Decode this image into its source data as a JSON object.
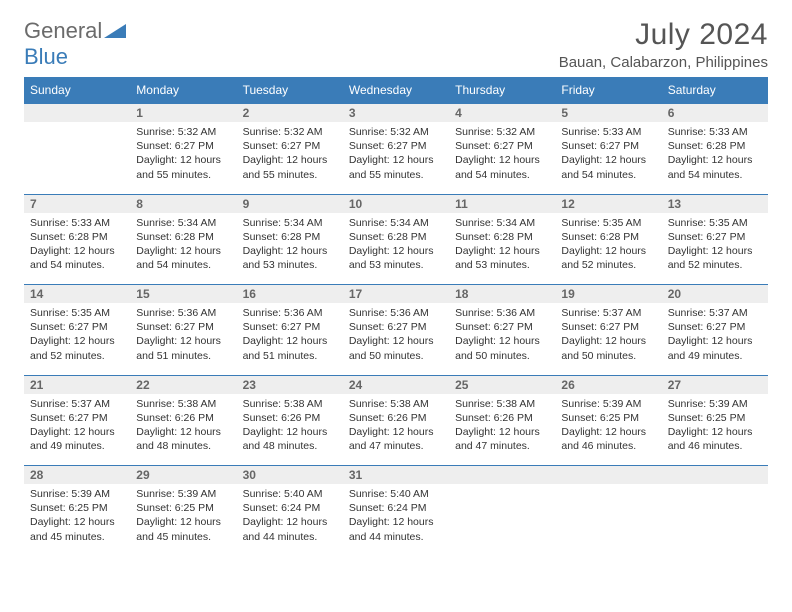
{
  "logo": {
    "text1": "General",
    "text2": "Blue"
  },
  "title": "July 2024",
  "location": "Bauan, Calabarzon, Philippines",
  "headers": [
    "Sunday",
    "Monday",
    "Tuesday",
    "Wednesday",
    "Thursday",
    "Friday",
    "Saturday"
  ],
  "colors": {
    "header_bg": "#3a7cb8",
    "header_text": "#ffffff",
    "daynum_bg": "#eeeeee",
    "border": "#3a7cb8",
    "background": "#ffffff"
  },
  "weeks": [
    {
      "nums": [
        "",
        "1",
        "2",
        "3",
        "4",
        "5",
        "6"
      ],
      "cells": [
        {},
        {
          "sr": "Sunrise: 5:32 AM",
          "ss": "Sunset: 6:27 PM",
          "d1": "Daylight: 12 hours",
          "d2": "and 55 minutes."
        },
        {
          "sr": "Sunrise: 5:32 AM",
          "ss": "Sunset: 6:27 PM",
          "d1": "Daylight: 12 hours",
          "d2": "and 55 minutes."
        },
        {
          "sr": "Sunrise: 5:32 AM",
          "ss": "Sunset: 6:27 PM",
          "d1": "Daylight: 12 hours",
          "d2": "and 55 minutes."
        },
        {
          "sr": "Sunrise: 5:32 AM",
          "ss": "Sunset: 6:27 PM",
          "d1": "Daylight: 12 hours",
          "d2": "and 54 minutes."
        },
        {
          "sr": "Sunrise: 5:33 AM",
          "ss": "Sunset: 6:27 PM",
          "d1": "Daylight: 12 hours",
          "d2": "and 54 minutes."
        },
        {
          "sr": "Sunrise: 5:33 AM",
          "ss": "Sunset: 6:28 PM",
          "d1": "Daylight: 12 hours",
          "d2": "and 54 minutes."
        }
      ]
    },
    {
      "nums": [
        "7",
        "8",
        "9",
        "10",
        "11",
        "12",
        "13"
      ],
      "cells": [
        {
          "sr": "Sunrise: 5:33 AM",
          "ss": "Sunset: 6:28 PM",
          "d1": "Daylight: 12 hours",
          "d2": "and 54 minutes."
        },
        {
          "sr": "Sunrise: 5:34 AM",
          "ss": "Sunset: 6:28 PM",
          "d1": "Daylight: 12 hours",
          "d2": "and 54 minutes."
        },
        {
          "sr": "Sunrise: 5:34 AM",
          "ss": "Sunset: 6:28 PM",
          "d1": "Daylight: 12 hours",
          "d2": "and 53 minutes."
        },
        {
          "sr": "Sunrise: 5:34 AM",
          "ss": "Sunset: 6:28 PM",
          "d1": "Daylight: 12 hours",
          "d2": "and 53 minutes."
        },
        {
          "sr": "Sunrise: 5:34 AM",
          "ss": "Sunset: 6:28 PM",
          "d1": "Daylight: 12 hours",
          "d2": "and 53 minutes."
        },
        {
          "sr": "Sunrise: 5:35 AM",
          "ss": "Sunset: 6:28 PM",
          "d1": "Daylight: 12 hours",
          "d2": "and 52 minutes."
        },
        {
          "sr": "Sunrise: 5:35 AM",
          "ss": "Sunset: 6:27 PM",
          "d1": "Daylight: 12 hours",
          "d2": "and 52 minutes."
        }
      ]
    },
    {
      "nums": [
        "14",
        "15",
        "16",
        "17",
        "18",
        "19",
        "20"
      ],
      "cells": [
        {
          "sr": "Sunrise: 5:35 AM",
          "ss": "Sunset: 6:27 PM",
          "d1": "Daylight: 12 hours",
          "d2": "and 52 minutes."
        },
        {
          "sr": "Sunrise: 5:36 AM",
          "ss": "Sunset: 6:27 PM",
          "d1": "Daylight: 12 hours",
          "d2": "and 51 minutes."
        },
        {
          "sr": "Sunrise: 5:36 AM",
          "ss": "Sunset: 6:27 PM",
          "d1": "Daylight: 12 hours",
          "d2": "and 51 minutes."
        },
        {
          "sr": "Sunrise: 5:36 AM",
          "ss": "Sunset: 6:27 PM",
          "d1": "Daylight: 12 hours",
          "d2": "and 50 minutes."
        },
        {
          "sr": "Sunrise: 5:36 AM",
          "ss": "Sunset: 6:27 PM",
          "d1": "Daylight: 12 hours",
          "d2": "and 50 minutes."
        },
        {
          "sr": "Sunrise: 5:37 AM",
          "ss": "Sunset: 6:27 PM",
          "d1": "Daylight: 12 hours",
          "d2": "and 50 minutes."
        },
        {
          "sr": "Sunrise: 5:37 AM",
          "ss": "Sunset: 6:27 PM",
          "d1": "Daylight: 12 hours",
          "d2": "and 49 minutes."
        }
      ]
    },
    {
      "nums": [
        "21",
        "22",
        "23",
        "24",
        "25",
        "26",
        "27"
      ],
      "cells": [
        {
          "sr": "Sunrise: 5:37 AM",
          "ss": "Sunset: 6:27 PM",
          "d1": "Daylight: 12 hours",
          "d2": "and 49 minutes."
        },
        {
          "sr": "Sunrise: 5:38 AM",
          "ss": "Sunset: 6:26 PM",
          "d1": "Daylight: 12 hours",
          "d2": "and 48 minutes."
        },
        {
          "sr": "Sunrise: 5:38 AM",
          "ss": "Sunset: 6:26 PM",
          "d1": "Daylight: 12 hours",
          "d2": "and 48 minutes."
        },
        {
          "sr": "Sunrise: 5:38 AM",
          "ss": "Sunset: 6:26 PM",
          "d1": "Daylight: 12 hours",
          "d2": "and 47 minutes."
        },
        {
          "sr": "Sunrise: 5:38 AM",
          "ss": "Sunset: 6:26 PM",
          "d1": "Daylight: 12 hours",
          "d2": "and 47 minutes."
        },
        {
          "sr": "Sunrise: 5:39 AM",
          "ss": "Sunset: 6:25 PM",
          "d1": "Daylight: 12 hours",
          "d2": "and 46 minutes."
        },
        {
          "sr": "Sunrise: 5:39 AM",
          "ss": "Sunset: 6:25 PM",
          "d1": "Daylight: 12 hours",
          "d2": "and 46 minutes."
        }
      ]
    },
    {
      "nums": [
        "28",
        "29",
        "30",
        "31",
        "",
        "",
        ""
      ],
      "cells": [
        {
          "sr": "Sunrise: 5:39 AM",
          "ss": "Sunset: 6:25 PM",
          "d1": "Daylight: 12 hours",
          "d2": "and 45 minutes."
        },
        {
          "sr": "Sunrise: 5:39 AM",
          "ss": "Sunset: 6:25 PM",
          "d1": "Daylight: 12 hours",
          "d2": "and 45 minutes."
        },
        {
          "sr": "Sunrise: 5:40 AM",
          "ss": "Sunset: 6:24 PM",
          "d1": "Daylight: 12 hours",
          "d2": "and 44 minutes."
        },
        {
          "sr": "Sunrise: 5:40 AM",
          "ss": "Sunset: 6:24 PM",
          "d1": "Daylight: 12 hours",
          "d2": "and 44 minutes."
        },
        {},
        {},
        {}
      ]
    }
  ]
}
